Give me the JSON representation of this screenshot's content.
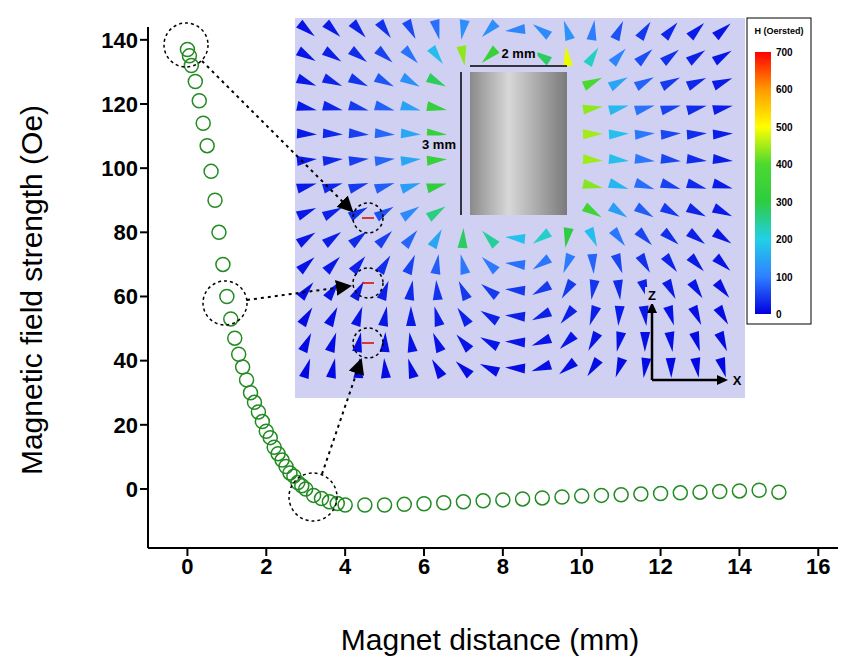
{
  "chart_data": {
    "type": "scatter",
    "xlabel": "Magnet distance (mm)",
    "ylabel": "Magnetic field strength (Oe)",
    "x": [
      0,
      0.05,
      0.1,
      0.2,
      0.3,
      0.4,
      0.5,
      0.6,
      0.7,
      0.8,
      0.9,
      1.0,
      1.1,
      1.2,
      1.3,
      1.4,
      1.5,
      1.6,
      1.7,
      1.8,
      1.9,
      2.0,
      2.1,
      2.2,
      2.3,
      2.4,
      2.5,
      2.6,
      2.7,
      2.8,
      2.9,
      3.0,
      3.2,
      3.4,
      3.6,
      3.8,
      4.0,
      4.5,
      5.0,
      5.5,
      6.0,
      6.5,
      7.0,
      7.5,
      8.0,
      8.5,
      9.0,
      9.5,
      10.0,
      10.5,
      11.0,
      11.5,
      12.0,
      12.5,
      13.0,
      13.5,
      14.0,
      14.5,
      15.0
    ],
    "values": [
      137,
      135,
      132,
      127,
      121,
      114,
      107,
      99,
      90,
      80,
      70,
      60,
      53,
      47,
      42,
      38,
      34,
      30,
      27,
      24,
      21,
      18,
      16,
      13,
      11,
      9,
      7,
      5,
      4,
      2,
      1,
      0,
      -2,
      -3,
      -4,
      -4.5,
      -5,
      -5,
      -5,
      -4.8,
      -4.6,
      -4.3,
      -4,
      -3.7,
      -3.4,
      -3.1,
      -2.8,
      -2.5,
      -2.2,
      -2,
      -1.8,
      -1.6,
      -1.4,
      -1.2,
      -1,
      -0.8,
      -0.6,
      -0.4,
      -1
    ],
    "color": "#228b22",
    "marker": "circle_open",
    "xlim": [
      -1,
      16.5
    ],
    "xticks": [
      0,
      2,
      4,
      6,
      8,
      10,
      12,
      14,
      16
    ],
    "ylim": [
      -18.4,
      144
    ],
    "yticks": [
      0,
      20,
      40,
      60,
      80,
      100,
      120,
      140
    ],
    "grid": false,
    "inset": {
      "magnet_width_label": "2 mm",
      "magnet_height_label": "3 mm",
      "axis_labels": {
        "vertical": "Z",
        "horizontal": "X"
      },
      "colorbar": {
        "title": "H (Oersted)",
        "range": [
          0,
          700
        ],
        "ticks": [
          0,
          100,
          200,
          300,
          400,
          500,
          600,
          700
        ]
      }
    }
  }
}
